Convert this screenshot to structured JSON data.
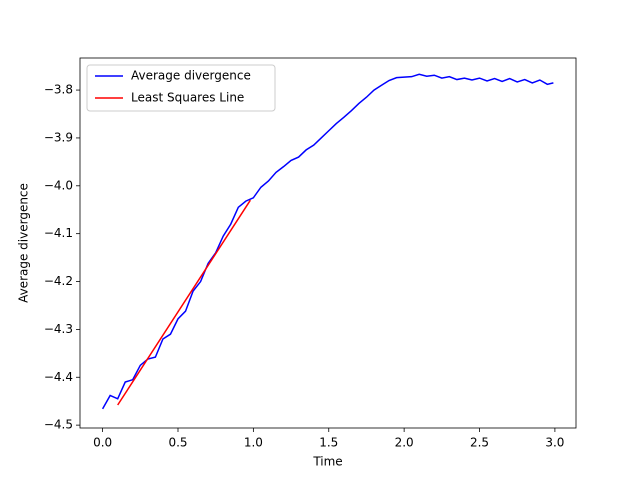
{
  "chart_data": {
    "type": "line",
    "xlabel": "Time",
    "ylabel": "Average divergence",
    "xlim": [
      -0.15,
      3.14
    ],
    "ylim": [
      -4.506,
      -3.733
    ],
    "xticks": [
      {
        "value": 0,
        "label": "0.0"
      },
      0.5,
      {
        "value": 1,
        "label": "1.0"
      },
      1.5,
      {
        "value": 2,
        "label": "2.0"
      },
      2.5,
      {
        "value": 3,
        "label": "3.0"
      }
    ],
    "yticks": [
      {
        "value": -4.5,
        "label": "−4.5"
      },
      {
        "value": -4.4,
        "label": "−4.4"
      },
      {
        "value": -4.3,
        "label": "−4.3"
      },
      {
        "value": -4.2,
        "label": "−4.2"
      },
      {
        "value": -4.1,
        "label": "−4.1"
      },
      {
        "value": -4.0,
        "label": "−4.0"
      },
      {
        "value": -3.9,
        "label": "−3.9"
      },
      {
        "value": -3.8,
        "label": "−3.8"
      }
    ],
    "legend": "upper left",
    "grid": false,
    "series": [
      {
        "name": "Average divergence",
        "color": "#0000ff",
        "x": [
          0,
          0.05,
          0.1,
          0.15,
          0.2,
          0.25,
          0.3,
          0.35,
          0.4,
          0.45,
          0.5,
          0.55,
          0.6,
          0.65,
          0.7,
          0.75,
          0.8,
          0.85,
          0.9,
          0.95,
          1.0,
          1.05,
          1.1,
          1.15,
          1.2,
          1.25,
          1.3,
          1.35,
          1.4,
          1.45,
          1.5,
          1.55,
          1.6,
          1.65,
          1.7,
          1.75,
          1.8,
          1.85,
          1.9,
          1.95,
          2.0,
          2.05,
          2.1,
          2.15,
          2.2,
          2.25,
          2.3,
          2.35,
          2.4,
          2.45,
          2.5,
          2.55,
          2.6,
          2.65,
          2.7,
          2.75,
          2.8,
          2.85,
          2.9,
          2.95,
          2.99
        ],
        "values": [
          -4.466,
          -4.438,
          -4.445,
          -4.41,
          -4.405,
          -4.375,
          -4.362,
          -4.358,
          -4.32,
          -4.31,
          -4.278,
          -4.262,
          -4.22,
          -4.2,
          -4.162,
          -4.14,
          -4.105,
          -4.08,
          -4.045,
          -4.032,
          -4.025,
          -4.003,
          -3.99,
          -3.972,
          -3.96,
          -3.947,
          -3.94,
          -3.925,
          -3.915,
          -3.9,
          -3.885,
          -3.87,
          -3.857,
          -3.843,
          -3.828,
          -3.815,
          -3.8,
          -3.79,
          -3.78,
          -3.774,
          -3.773,
          -3.772,
          -3.767,
          -3.771,
          -3.769,
          -3.775,
          -3.772,
          -3.778,
          -3.775,
          -3.779,
          -3.775,
          -3.781,
          -3.776,
          -3.782,
          -3.776,
          -3.783,
          -3.778,
          -3.785,
          -3.779,
          -3.788,
          -3.785
        ]
      },
      {
        "name": "Least Squares Line",
        "color": "#ff0000",
        "x": [
          0.1,
          0.98
        ],
        "values": [
          -4.458,
          -4.03
        ]
      }
    ]
  }
}
